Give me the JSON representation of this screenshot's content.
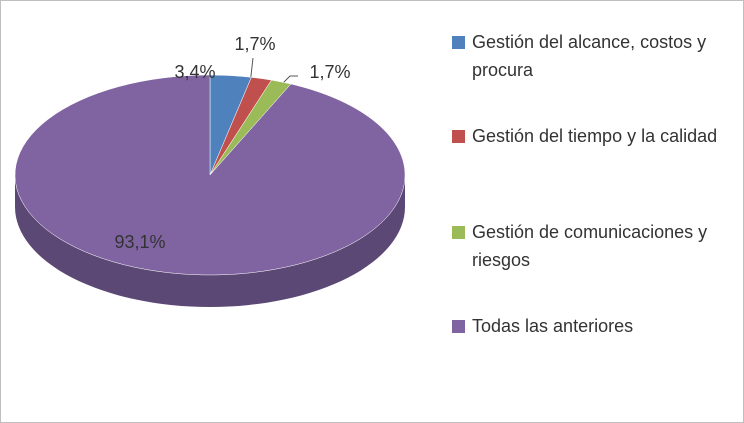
{
  "chart_data": {
    "type": "pie",
    "categories": [
      "Gestión del alcance, costos y procura",
      "Gestión del tiempo y la calidad",
      "Gestión de comunicaciones y riesgos",
      "Todas las anteriores"
    ],
    "values": [
      3.4,
      1.7,
      1.7,
      93.1
    ],
    "value_labels": [
      "3,4%",
      "1,7%",
      "1,7%",
      "93,1%"
    ],
    "colors": [
      "#4f81bd",
      "#c0504d",
      "#9bbb59",
      "#8064a2"
    ],
    "legend": "right"
  }
}
